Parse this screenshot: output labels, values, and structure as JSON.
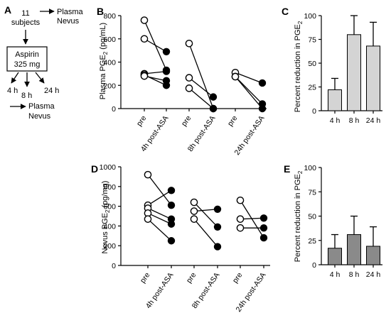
{
  "panel_a": {
    "letter": "A",
    "subjects_count": "11",
    "subjects_label": "subjects",
    "plasma_label": "Plasma",
    "nevus_label": "Nevus",
    "aspirin_name": "Aspirin",
    "aspirin_dose": "325 mg",
    "times": [
      "4 h",
      "8 h",
      "24 h"
    ],
    "plasma_label_2": "Plasma",
    "nevus_label_2": "Nevus"
  },
  "chart_data": [
    {
      "panel": "B",
      "type": "scatter",
      "ylabel": "Plasma PGE2 (pg/mL)",
      "ylabel_main": "Plasma PGE",
      "ylabel_sub": "2",
      "ylabel_tail": " (pg/mL)",
      "ylim": [
        0,
        800
      ],
      "yticks": [
        0,
        200,
        400,
        600,
        800
      ],
      "categories": [
        "pre",
        "4h post-ASA",
        "pre",
        "8h post-ASA",
        "pre",
        "24h post-ASA"
      ],
      "groups": [
        {
          "name": "4h post-ASA",
          "pairs": [
            [
              760,
              330
            ],
            [
              600,
              490
            ],
            [
              300,
              320
            ],
            [
              290,
              200
            ],
            [
              280,
              240
            ]
          ]
        },
        {
          "name": "8h post-ASA",
          "pairs": [
            [
              560,
              0
            ],
            [
              265,
              100
            ],
            [
              175,
              0
            ]
          ]
        },
        {
          "name": "24h post-ASA",
          "pairs": [
            [
              310,
              220
            ],
            [
              275,
              40
            ],
            [
              275,
              0
            ]
          ]
        }
      ]
    },
    {
      "panel": "C",
      "type": "bar",
      "ylabel": "Percent reduction in PGE2",
      "ylabel_main": "Percent reduction in PGE",
      "ylabel_sub": "2",
      "ylim": [
        0,
        100
      ],
      "yticks": [
        0,
        25,
        50,
        75,
        100
      ],
      "categories": [
        "4 h",
        "8 h",
        "24 h"
      ],
      "values": [
        22,
        80,
        68
      ],
      "errors": [
        12,
        20,
        25
      ],
      "bar_color": "#d4d4d4"
    },
    {
      "panel": "D",
      "type": "scatter",
      "ylabel": "Nevus PGE2 (pg/mg)",
      "ylabel_main": "Nevus PGE",
      "ylabel_sub": "2",
      "ylabel_tail": " (pg/mg)",
      "ylim": [
        0,
        1000
      ],
      "yticks": [
        0,
        200,
        400,
        600,
        800,
        1000
      ],
      "categories": [
        "pre",
        "4h post-ASA",
        "pre",
        "8h post-ASA",
        "pre",
        "24h post-ASA"
      ],
      "groups": [
        {
          "name": "4h post-ASA",
          "pairs": [
            [
              920,
              610
            ],
            [
              610,
              760
            ],
            [
              580,
              470
            ],
            [
              530,
              420
            ],
            [
              470,
              250
            ]
          ]
        },
        {
          "name": "8h post-ASA",
          "pairs": [
            [
              640,
              390
            ],
            [
              550,
              570
            ],
            [
              470,
              190
            ]
          ]
        },
        {
          "name": "24h post-ASA",
          "pairs": [
            [
              660,
              280
            ],
            [
              470,
              480
            ],
            [
              380,
              380
            ]
          ]
        }
      ]
    },
    {
      "panel": "E",
      "type": "bar",
      "ylabel": "Percent reduction in PGE2",
      "ylabel_main": "Percent reduction in PGE",
      "ylabel_sub": "2",
      "ylim": [
        0,
        100
      ],
      "yticks": [
        0,
        25,
        50,
        75,
        100
      ],
      "categories": [
        "4 h",
        "8 h",
        "24 h"
      ],
      "values": [
        17,
        31,
        19
      ],
      "errors": [
        14,
        19,
        20
      ],
      "bar_color": "#8a8a8a"
    }
  ]
}
